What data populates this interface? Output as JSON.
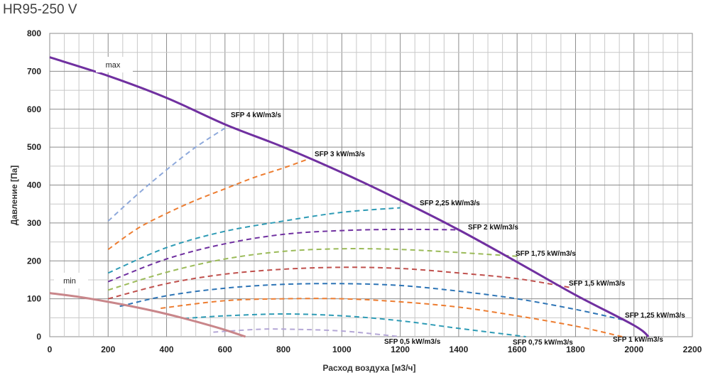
{
  "chart_data": {
    "type": "line",
    "title": "HR95-250 V",
    "xlabel": "Расход воздуха [м3/ч]",
    "ylabel": "Давление [Па]",
    "xlim": [
      0,
      2200
    ],
    "ylim": [
      0,
      800
    ],
    "x_ticks": [
      0,
      200,
      400,
      600,
      800,
      1000,
      1200,
      1400,
      1600,
      1800,
      2000,
      2200
    ],
    "y_ticks": [
      0,
      100,
      200,
      300,
      400,
      500,
      600,
      700,
      800
    ],
    "grid": true,
    "callouts": [
      "max",
      "min"
    ],
    "fan_curves": [
      {
        "name": "max",
        "color": "#7030A0",
        "x": [
          0,
          200,
          400,
          600,
          800,
          1000,
          1200,
          1400,
          1600,
          1800,
          2000,
          2050
        ],
        "y": [
          737,
          688,
          630,
          560,
          500,
          433,
          360,
          282,
          197,
          110,
          30,
          0
        ]
      },
      {
        "name": "min",
        "color": "#C9868A",
        "x": [
          0,
          100,
          200,
          300,
          400,
          500,
          600,
          670
        ],
        "y": [
          115,
          105,
          92,
          77,
          60,
          40,
          18,
          0
        ]
      }
    ],
    "sfp_series": [
      {
        "name": "SFP 4 kW/m3/s",
        "color": "#8EA9DB",
        "x": [
          200,
          300,
          400,
          500,
          610
        ],
        "y": [
          305,
          375,
          440,
          500,
          555
        ]
      },
      {
        "name": "SFP 3 kW/m3/s",
        "color": "#ED7D31",
        "x": [
          200,
          300,
          400,
          500,
          600,
          700,
          800,
          890
        ],
        "y": [
          230,
          285,
          325,
          360,
          390,
          420,
          445,
          470
        ]
      },
      {
        "name": "SFP 2,25 kW/m3/s",
        "color": "#2E9BB5",
        "x": [
          200,
          400,
          600,
          800,
          1000,
          1200
        ],
        "y": [
          168,
          235,
          278,
          305,
          328,
          340
        ]
      },
      {
        "name": "SFP 2 kW/m3/s",
        "color": "#7030A0",
        "x": [
          200,
          400,
          600,
          800,
          1000,
          1200,
          1400
        ],
        "y": [
          145,
          205,
          245,
          270,
          280,
          283,
          282
        ]
      },
      {
        "name": "SFP 1,75 kW/m3/s",
        "color": "#9BBB59",
        "x": [
          200,
          400,
          600,
          800,
          1000,
          1200,
          1400,
          1600
        ],
        "y": [
          123,
          170,
          205,
          225,
          232,
          230,
          222,
          212
        ]
      },
      {
        "name": "SFP 1,5 kW/m3/s",
        "color": "#C0504D",
        "x": [
          200,
          400,
          600,
          800,
          1000,
          1200,
          1400,
          1600,
          1780
        ],
        "y": [
          100,
          140,
          165,
          178,
          183,
          180,
          168,
          153,
          130
        ]
      },
      {
        "name": "SFP 1,25 kW/m3/s",
        "color": "#2E75B6",
        "x": [
          240,
          400,
          600,
          800,
          1000,
          1200,
          1400,
          1600,
          1800,
          1960
        ],
        "y": [
          80,
          108,
          128,
          138,
          140,
          135,
          120,
          100,
          72,
          45
        ]
      },
      {
        "name": "SFP 1 kW/m3/s",
        "color": "#ED7D31",
        "x": [
          380,
          600,
          800,
          1000,
          1200,
          1400,
          1600,
          1800,
          1960
        ],
        "y": [
          75,
          95,
          100,
          100,
          92,
          78,
          55,
          28,
          0
        ]
      },
      {
        "name": "SFP 0,75 kW/m3/s",
        "color": "#2E9BB5",
        "x": [
          460,
          600,
          800,
          1000,
          1200,
          1400,
          1630
        ],
        "y": [
          48,
          55,
          60,
          55,
          42,
          22,
          0
        ]
      },
      {
        "name": "SFP 0,5 kW/m3/s",
        "color": "#B4A7D6",
        "x": [
          560,
          700,
          800,
          1000,
          1200
        ],
        "y": [
          12,
          19,
          20,
          15,
          0
        ]
      }
    ]
  }
}
